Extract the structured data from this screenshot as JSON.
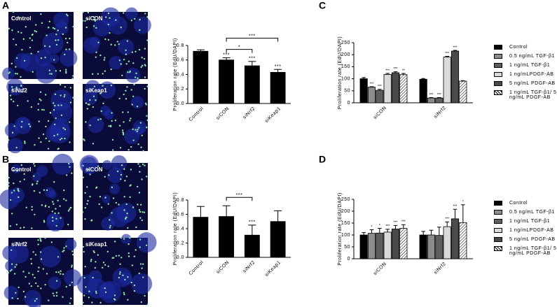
{
  "panels": [
    {
      "letter": "A",
      "images": [
        "Control",
        "siCON",
        "siNrf2",
        "siKeap1"
      ]
    },
    {
      "letter": "B",
      "images": [
        "Control",
        "siCON",
        "siNrf2",
        "siKeap1"
      ]
    },
    {
      "letter": "C"
    },
    {
      "letter": "D"
    }
  ],
  "chart_data": [
    {
      "type": "bar",
      "y_label": "Proliferation rate (EdU/DAPI)",
      "categories": [
        "Control",
        "siCON",
        "siNrf2",
        "siKeap1"
      ],
      "values": [
        0.72,
        0.6,
        0.52,
        0.43
      ],
      "errors": [
        0.02,
        0.03,
        0.06,
        0.04
      ],
      "color": "#000000",
      "ylim": [
        0,
        0.8
      ],
      "yticks": [
        {
          "value": 0,
          "label": "0.0"
        },
        0.2,
        0.4,
        0.6,
        0.8
      ],
      "annotations": [
        {
          "text": "***",
          "category": 1
        },
        {
          "text": "***",
          "category": 2
        },
        {
          "text": "***",
          "category": 3
        },
        {
          "text": "*",
          "from": 1,
          "to": 2
        },
        {
          "text": "***",
          "from": 1,
          "to": 3
        }
      ]
    },
    {
      "type": "bar",
      "y_label": "Proliferation rate (EdU/DAPI)",
      "categories": [
        "Control",
        "siCON",
        "siNrf2",
        "siKeap1"
      ],
      "values": [
        0.56,
        0.57,
        0.31,
        0.5
      ],
      "errors": [
        0.15,
        0.15,
        0.14,
        0.15
      ],
      "color": "#000000",
      "ylim": [
        0,
        0.8
      ],
      "yticks": [
        {
          "value": 0,
          "label": "0.0"
        },
        0.2,
        0.4,
        0.6,
        0.8
      ],
      "annotations": [
        {
          "text": "***",
          "category": 2
        },
        {
          "text": "***",
          "from": 1,
          "to": 2
        }
      ]
    },
    {
      "type": "bar",
      "y_label": "Proliferation rate (EdU/DAPI)",
      "categories": [
        "siCON",
        "siNrf2"
      ],
      "series": [
        {
          "name": "Control",
          "color": "#000000",
          "values": [
            100,
            98
          ],
          "errors": [
            5,
            3
          ]
        },
        {
          "name": "0.5 ng/mL TGF-β1",
          "color": "#8c8c8c",
          "values": [
            65,
            20
          ],
          "errors": [
            2,
            2
          ]
        },
        {
          "name": "1 ng/mL TGF-β1",
          "color": "#5e5e5e",
          "values": [
            52,
            20
          ],
          "errors": [
            4,
            2
          ]
        },
        {
          "name": "1 ng/mLPDGF-AB",
          "color": "#d9d9d9",
          "values": [
            118,
            190
          ],
          "errors": [
            4,
            3
          ]
        },
        {
          "name": "5 ng/mL PDGF-AB",
          "color": "#4a4a4a",
          "values": [
            125,
            215
          ],
          "errors": [
            4,
            3
          ]
        },
        {
          "name": "1 ng/mL TGF-β1/ 5 ng/mL PDGF-AB",
          "color": "#ffffff",
          "pattern": "hatch",
          "values": [
            117,
            90
          ],
          "errors": [
            5,
            2
          ]
        }
      ],
      "ylim": [
        0,
        250
      ],
      "yticks": [
        0,
        50,
        100,
        150,
        200,
        250
      ],
      "annotations": [
        {
          "text": "***",
          "series": 1,
          "category": 0
        },
        {
          "text": "***",
          "series": 2,
          "category": 0
        },
        {
          "text": "***",
          "series": 3,
          "category": 0
        },
        {
          "text": "***",
          "series": 4,
          "category": 0
        },
        {
          "text": "**",
          "series": 5,
          "category": 0
        },
        {
          "text": "***",
          "series": 1,
          "category": 1
        },
        {
          "text": "***",
          "series": 2,
          "category": 1
        },
        {
          "text": "***",
          "series": 3,
          "category": 1
        },
        {
          "text": "***",
          "series": 4,
          "category": 1
        }
      ]
    },
    {
      "type": "bar",
      "y_label": "Proliferation rate (EdU/DAPI)",
      "categories": [
        "siCON",
        "siNrf2"
      ],
      "series": [
        {
          "name": "Control",
          "color": "#000000",
          "values": [
            100,
            100
          ],
          "errors": [
            10,
            15
          ]
        },
        {
          "name": "0.5 ng/mL TGF-β1",
          "color": "#8c8c8c",
          "values": [
            107,
            100
          ],
          "errors": [
            15,
            20
          ]
        },
        {
          "name": "1 ng/mL TGF-β1",
          "color": "#5e5e5e",
          "values": [
            108,
            98
          ],
          "errors": [
            20,
            35
          ]
        },
        {
          "name": "1 ng/mLPDGF-AB",
          "color": "#d9d9d9",
          "values": [
            112,
            135
          ],
          "errors": [
            12,
            20
          ]
        },
        {
          "name": "5 ng/mL PDGF-AB",
          "color": "#4a4a4a",
          "values": [
            125,
            168
          ],
          "errors": [
            15,
            40
          ]
        },
        {
          "name": "1 ng/mL TGF-β1/ 5 ng/mL PDGF-AB",
          "color": "#ffffff",
          "pattern": "hatch",
          "values": [
            128,
            152
          ],
          "errors": [
            15,
            75
          ]
        }
      ],
      "ylim": [
        0,
        250
      ],
      "yticks": [
        0,
        50,
        100,
        150,
        200,
        250
      ],
      "annotations": [
        {
          "text": "*",
          "series": 1,
          "category": 0
        },
        {
          "text": "*",
          "series": 2,
          "category": 0
        },
        {
          "text": "***",
          "series": 3,
          "category": 0
        },
        {
          "text": "***",
          "series": 4,
          "category": 0
        },
        {
          "text": "***",
          "series": 5,
          "category": 0
        },
        {
          "text": "***",
          "series": 3,
          "category": 1
        },
        {
          "text": "***",
          "series": 4,
          "category": 1
        },
        {
          "text": "*",
          "series": 5,
          "category": 1
        }
      ]
    }
  ]
}
